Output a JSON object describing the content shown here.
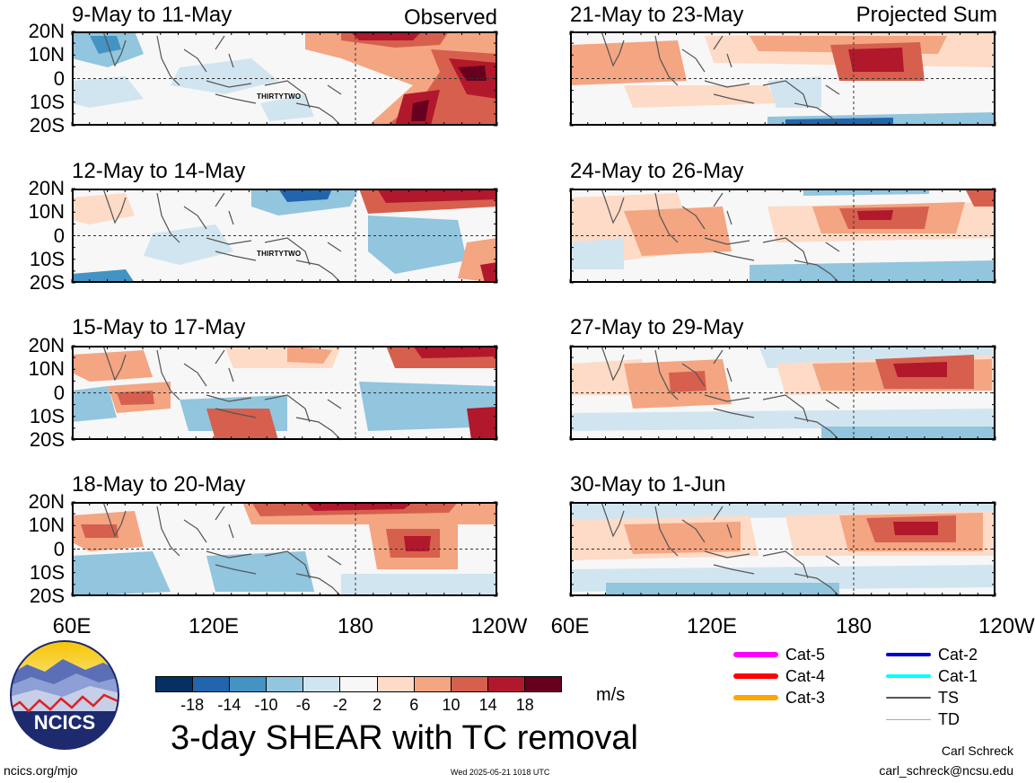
{
  "panels": [
    {
      "title": "9-May to 11-May",
      "label": "Observed",
      "tc": "THIRTYTWO"
    },
    {
      "title": "12-May to 14-May",
      "label": "",
      "tc": "THIRTYTWO"
    },
    {
      "title": "15-May to 17-May",
      "label": "",
      "tc": ""
    },
    {
      "title": "18-May to 20-May",
      "label": "",
      "tc": ""
    },
    {
      "title": "21-May to 23-May",
      "label": "Projected Sum",
      "tc": ""
    },
    {
      "title": "24-May to 26-May",
      "label": "",
      "tc": ""
    },
    {
      "title": "27-May to 29-May",
      "label": "",
      "tc": ""
    },
    {
      "title": "30-May to 1-Jun",
      "label": "",
      "tc": ""
    }
  ],
  "lat_labels": [
    "20N",
    "10N",
    "0",
    "10S",
    "20S"
  ],
  "lon_labels": [
    "60E",
    "120E",
    "180",
    "120W"
  ],
  "colorbar": {
    "colors": [
      "#053061",
      "#2166ac",
      "#4393c3",
      "#92c5de",
      "#d1e5f0",
      "#f7f7f7",
      "#fddbc7",
      "#f4a582",
      "#d6604d",
      "#b2182b",
      "#67001f"
    ],
    "ticks": [
      "-18",
      "-14",
      "-10",
      "-6",
      "-2",
      "2",
      "6",
      "10",
      "14",
      "18"
    ],
    "units": "m/s"
  },
  "title": "3-day SHEAR with TC removal",
  "logo_text": "NCICS",
  "url": "ncics.org/mjo",
  "timestamp": "Wed 2025-05-21 1018 UTC",
  "author": "Carl Schreck",
  "email": "carl_schreck@ncsu.edu",
  "legend": [
    {
      "label": "Cat-5",
      "color": "#ff00ff"
    },
    {
      "label": "Cat-4",
      "color": "#ff0000"
    },
    {
      "label": "Cat-3",
      "color": "#ffa500"
    },
    {
      "label": "Cat-2",
      "color": "#0000cc"
    },
    {
      "label": "Cat-1",
      "color": "#00ffff"
    },
    {
      "label": "TS",
      "color": "#555555"
    },
    {
      "label": "TD",
      "color": "#aaaaaa"
    }
  ]
}
